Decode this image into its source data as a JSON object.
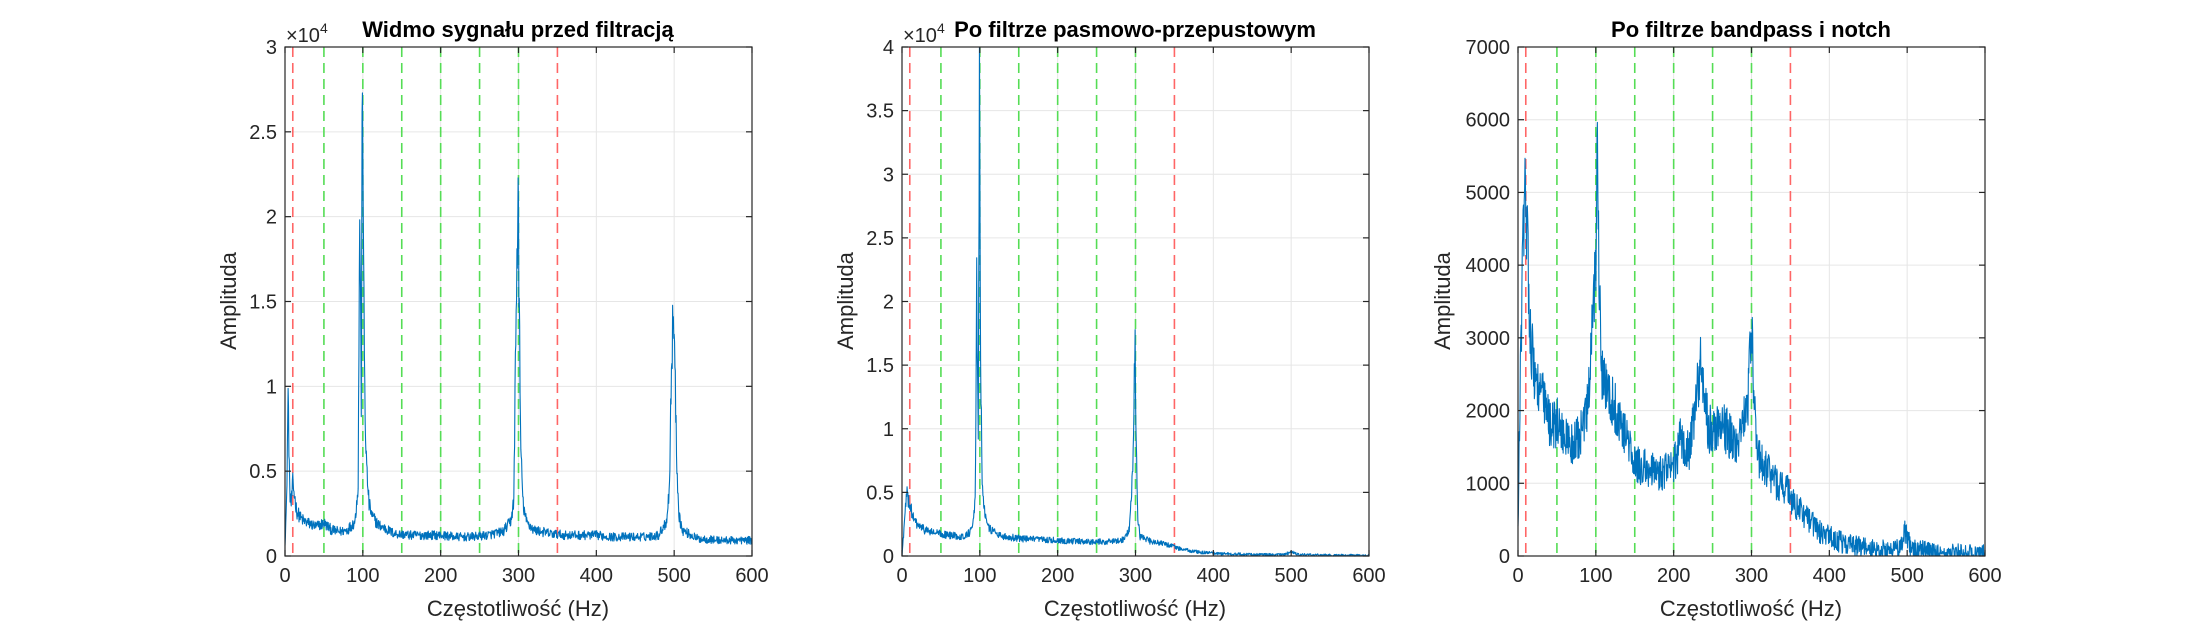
{
  "chart_data": [
    {
      "type": "line",
      "title": "Widmo sygnału przed filtracją",
      "xlabel": "Częstotliwość (Hz)",
      "ylabel": "Amplituda",
      "xlim": [
        0,
        600
      ],
      "ylim": [
        0,
        30000
      ],
      "xticks": [
        0,
        100,
        200,
        300,
        400,
        500,
        600
      ],
      "yticks": [
        0,
        5000,
        10000,
        15000,
        20000,
        25000,
        30000
      ],
      "ytick_labels": [
        "0",
        "0.5",
        "1",
        "1.5",
        "2",
        "2.5",
        "3"
      ],
      "y_exponent_label": "×10",
      "y_exponent_power": "4",
      "grid": true,
      "series_color": "#0072BD",
      "red_lines_hz": [
        10,
        350
      ],
      "green_lines_hz": [
        50,
        100,
        150,
        200,
        250,
        300
      ],
      "red_color": "#FF6666",
      "green_color": "#55DD55",
      "series": [
        {
          "points": [
            [
              0,
              800
            ],
            [
              2,
              3000
            ],
            [
              4,
              9500
            ],
            [
              6,
              3800
            ],
            [
              8,
              3000
            ],
            [
              10,
              4200
            ],
            [
              12,
              3600
            ],
            [
              15,
              2600
            ],
            [
              20,
              2200
            ],
            [
              25,
              2000
            ],
            [
              30,
              1900
            ],
            [
              40,
              1700
            ],
            [
              50,
              1900
            ],
            [
              60,
              1500
            ],
            [
              70,
              1400
            ],
            [
              80,
              1500
            ],
            [
              90,
              2000
            ],
            [
              94,
              4200
            ],
            [
              96,
              20500
            ],
            [
              98,
              9000
            ],
            [
              99.5,
              30000
            ],
            [
              101,
              16000
            ],
            [
              103,
              8000
            ],
            [
              105,
              5000
            ],
            [
              108,
              3000
            ],
            [
              112,
              2300
            ],
            [
              120,
              1800
            ],
            [
              140,
              1300
            ],
            [
              160,
              1200
            ],
            [
              180,
              1200
            ],
            [
              200,
              1200
            ],
            [
              220,
              1100
            ],
            [
              240,
              1100
            ],
            [
              260,
              1200
            ],
            [
              280,
              1400
            ],
            [
              290,
              2000
            ],
            [
              294,
              3200
            ],
            [
              296,
              11000
            ],
            [
              298,
              17000
            ],
            [
              299.5,
              21500
            ],
            [
              301,
              14000
            ],
            [
              303,
              6000
            ],
            [
              306,
              3000
            ],
            [
              310,
              2000
            ],
            [
              320,
              1500
            ],
            [
              340,
              1300
            ],
            [
              360,
              1200
            ],
            [
              380,
              1200
            ],
            [
              400,
              1200
            ],
            [
              420,
              1100
            ],
            [
              440,
              1100
            ],
            [
              460,
              1100
            ],
            [
              480,
              1200
            ],
            [
              490,
              2000
            ],
            [
              494,
              4000
            ],
            [
              496,
              10000
            ],
            [
              498,
              13000
            ],
            [
              499.5,
              14200
            ],
            [
              501,
              11000
            ],
            [
              503,
              6000
            ],
            [
              506,
              2500
            ],
            [
              510,
              1500
            ],
            [
              530,
              1000
            ],
            [
              560,
              900
            ],
            [
              580,
              900
            ],
            [
              600,
              900
            ]
          ],
          "noise_amplitude": 1100
        }
      ]
    },
    {
      "type": "line",
      "title": "Po filtrze pasmowo-przepustowym",
      "xlabel": "Częstotliwość (Hz)",
      "ylabel": "Amplituda",
      "xlim": [
        0,
        600
      ],
      "ylim": [
        0,
        40000
      ],
      "xticks": [
        0,
        100,
        200,
        300,
        400,
        500,
        600
      ],
      "yticks": [
        0,
        5000,
        10000,
        15000,
        20000,
        25000,
        30000,
        35000,
        40000
      ],
      "ytick_labels": [
        "0",
        "0.5",
        "1",
        "1.5",
        "2",
        "2.5",
        "3",
        "3.5",
        "4"
      ],
      "y_exponent_label": "×10",
      "y_exponent_power": "4",
      "grid": true,
      "series_color": "#0072BD",
      "red_lines_hz": [
        10,
        350
      ],
      "green_lines_hz": [
        50,
        100,
        150,
        200,
        250,
        300
      ],
      "red_color": "#FF6666",
      "green_color": "#55DD55",
      "series": [
        {
          "points": [
            [
              0,
              0
            ],
            [
              3,
              2500
            ],
            [
              6,
              4800
            ],
            [
              10,
              4000
            ],
            [
              15,
              2800
            ],
            [
              20,
              2400
            ],
            [
              30,
              2000
            ],
            [
              40,
              1800
            ],
            [
              60,
              1600
            ],
            [
              80,
              1500
            ],
            [
              90,
              2000
            ],
            [
              94,
              4000
            ],
            [
              96,
              21000
            ],
            [
              98,
              10000
            ],
            [
              99.5,
              37500
            ],
            [
              101,
              15000
            ],
            [
              103,
              6000
            ],
            [
              106,
              3500
            ],
            [
              110,
              2200
            ],
            [
              130,
              1500
            ],
            [
              160,
              1300
            ],
            [
              200,
              1200
            ],
            [
              240,
              1100
            ],
            [
              270,
              1100
            ],
            [
              285,
              1300
            ],
            [
              292,
              2000
            ],
            [
              296,
              6000
            ],
            [
              298,
              12000
            ],
            [
              299.5,
              17500
            ],
            [
              301,
              8000
            ],
            [
              303,
              3000
            ],
            [
              306,
              1500
            ],
            [
              320,
              1100
            ],
            [
              340,
              900
            ],
            [
              350,
              700
            ],
            [
              360,
              500
            ],
            [
              380,
              300
            ],
            [
              400,
              200
            ],
            [
              450,
              100
            ],
            [
              490,
              80
            ],
            [
              500,
              300
            ],
            [
              510,
              80
            ],
            [
              550,
              40
            ],
            [
              600,
              20
            ]
          ],
          "noise_amplitude": 900
        }
      ]
    },
    {
      "type": "line",
      "title": "Po filtrze bandpass i notch",
      "xlabel": "Częstotliwość (Hz)",
      "ylabel": "Amplituda",
      "xlim": [
        0,
        600
      ],
      "ylim": [
        0,
        7000
      ],
      "xticks": [
        0,
        100,
        200,
        300,
        400,
        500,
        600
      ],
      "yticks": [
        0,
        1000,
        2000,
        3000,
        4000,
        5000,
        6000,
        7000
      ],
      "ytick_labels": [
        "0",
        "1000",
        "2000",
        "3000",
        "4000",
        "5000",
        "6000",
        "7000"
      ],
      "grid": true,
      "series_color": "#0072BD",
      "red_lines_hz": [
        10,
        350
      ],
      "green_lines_hz": [
        50,
        100,
        150,
        200,
        250,
        300
      ],
      "red_color": "#FF6666",
      "green_color": "#55DD55",
      "series": [
        {
          "points": [
            [
              0,
              300
            ],
            [
              3,
              2500
            ],
            [
              6,
              4000
            ],
            [
              9,
              4900
            ],
            [
              12,
              4500
            ],
            [
              15,
              3200
            ],
            [
              20,
              2500
            ],
            [
              30,
              2200
            ],
            [
              40,
              1800
            ],
            [
              50,
              1800
            ],
            [
              60,
              1600
            ],
            [
              70,
              1500
            ],
            [
              80,
              1600
            ],
            [
              90,
              2000
            ],
            [
              96,
              3100
            ],
            [
              100,
              4000
            ],
            [
              102,
              6250
            ],
            [
              104,
              4000
            ],
            [
              108,
              2500
            ],
            [
              115,
              2200
            ],
            [
              125,
              2000
            ],
            [
              140,
              1600
            ],
            [
              150,
              1200
            ],
            [
              160,
              1200
            ],
            [
              180,
              1100
            ],
            [
              200,
              1200
            ],
            [
              210,
              1600
            ],
            [
              220,
              1400
            ],
            [
              235,
              2600
            ],
            [
              245,
              1700
            ],
            [
              260,
              1800
            ],
            [
              280,
              1500
            ],
            [
              295,
              2000
            ],
            [
              300,
              3200
            ],
            [
              303,
              2000
            ],
            [
              310,
              1300
            ],
            [
              330,
              1000
            ],
            [
              345,
              900
            ],
            [
              355,
              700
            ],
            [
              370,
              500
            ],
            [
              390,
              300
            ],
            [
              420,
              150
            ],
            [
              460,
              80
            ],
            [
              490,
              80
            ],
            [
              497,
              300
            ],
            [
              500,
              250
            ],
            [
              505,
              100
            ],
            [
              530,
              40
            ],
            [
              570,
              20
            ],
            [
              600,
              10
            ]
          ],
          "noise_amplitude": 1200
        }
      ]
    }
  ]
}
